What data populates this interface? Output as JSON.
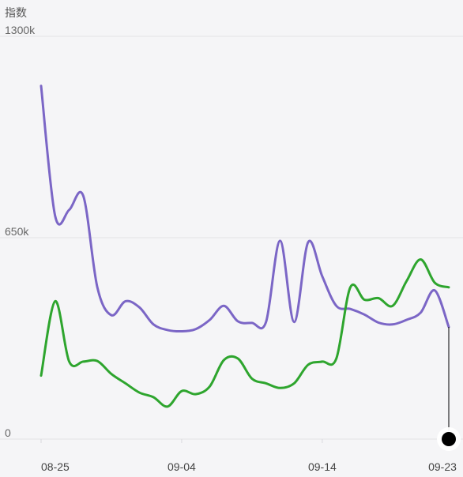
{
  "colors": {
    "purple": "#7b66c6",
    "green": "#2ea52e",
    "grid": "#e3e3e6",
    "cursor": "#000000"
  },
  "chart_data": {
    "type": "line",
    "ylabel": "指数",
    "ylim": [
      0,
      1300000
    ],
    "yticks": [
      {
        "value": 0,
        "label": "0"
      },
      {
        "value": 650000,
        "label": "650k"
      },
      {
        "value": 1300000,
        "label": "1300k"
      }
    ],
    "xlim": [
      "2025-08-25",
      "2025-09-23"
    ],
    "xticks": [
      "08-25",
      "09-04",
      "09-14",
      "09-23"
    ],
    "grid": true,
    "series": [
      {
        "color": "#7b66c6",
        "points": [
          [
            "2025-08-25",
            1140000
          ],
          [
            "2025-08-26",
            720000
          ],
          [
            "2025-08-27",
            740000
          ],
          [
            "2025-08-28",
            785000
          ],
          [
            "2025-08-29",
            490000
          ],
          [
            "2025-08-30",
            400000
          ],
          [
            "2025-08-31",
            445000
          ],
          [
            "2025-09-01",
            425000
          ],
          [
            "2025-09-02",
            370000
          ],
          [
            "2025-09-03",
            352000
          ],
          [
            "2025-09-04",
            348000
          ],
          [
            "2025-09-05",
            355000
          ],
          [
            "2025-09-06",
            385000
          ],
          [
            "2025-09-07",
            430000
          ],
          [
            "2025-09-08",
            380000
          ],
          [
            "2025-09-09",
            375000
          ],
          [
            "2025-09-10",
            378000
          ],
          [
            "2025-09-11",
            640000
          ],
          [
            "2025-09-12",
            378000
          ],
          [
            "2025-09-13",
            636000
          ],
          [
            "2025-09-14",
            525000
          ],
          [
            "2025-09-15",
            430000
          ],
          [
            "2025-09-16",
            420000
          ],
          [
            "2025-09-17",
            402000
          ],
          [
            "2025-09-18",
            376000
          ],
          [
            "2025-09-19",
            370000
          ],
          [
            "2025-09-20",
            385000
          ],
          [
            "2025-09-21",
            408000
          ],
          [
            "2025-09-22",
            480000
          ],
          [
            "2025-09-23",
            362000
          ]
        ]
      },
      {
        "color": "#2ea52e",
        "points": [
          [
            "2025-08-25",
            205000
          ],
          [
            "2025-08-26",
            445000
          ],
          [
            "2025-08-27",
            250000
          ],
          [
            "2025-08-28",
            250000
          ],
          [
            "2025-08-29",
            252000
          ],
          [
            "2025-08-30",
            210000
          ],
          [
            "2025-08-31",
            180000
          ],
          [
            "2025-09-01",
            150000
          ],
          [
            "2025-09-02",
            135000
          ],
          [
            "2025-09-03",
            105000
          ],
          [
            "2025-09-04",
            155000
          ],
          [
            "2025-09-05",
            145000
          ],
          [
            "2025-09-06",
            170000
          ],
          [
            "2025-09-07",
            255000
          ],
          [
            "2025-09-08",
            260000
          ],
          [
            "2025-09-09",
            195000
          ],
          [
            "2025-09-10",
            180000
          ],
          [
            "2025-09-11",
            165000
          ],
          [
            "2025-09-12",
            180000
          ],
          [
            "2025-09-13",
            240000
          ],
          [
            "2025-09-14",
            250000
          ],
          [
            "2025-09-15",
            260000
          ],
          [
            "2025-09-16",
            490000
          ],
          [
            "2025-09-17",
            450000
          ],
          [
            "2025-09-18",
            455000
          ],
          [
            "2025-09-19",
            430000
          ],
          [
            "2025-09-20",
            510000
          ],
          [
            "2025-09-21",
            580000
          ],
          [
            "2025-09-22",
            505000
          ],
          [
            "2025-09-23",
            490000
          ]
        ]
      }
    ]
  }
}
